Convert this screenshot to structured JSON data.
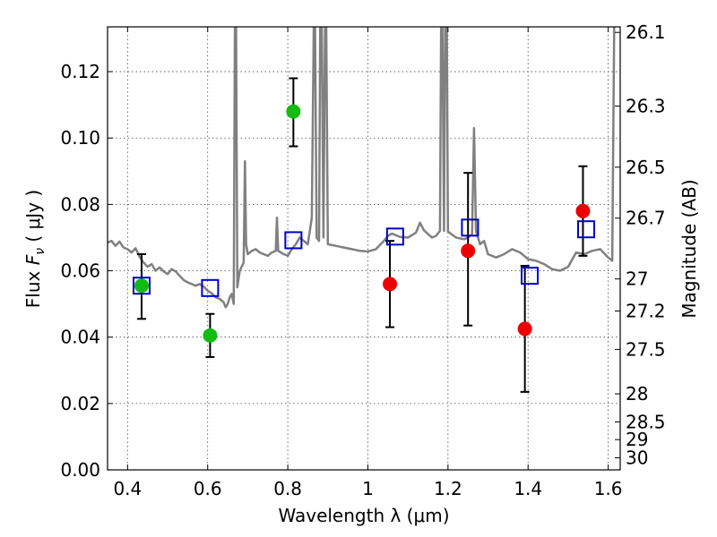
{
  "chart_data": {
    "type": "scatter",
    "title": "",
    "xlabel": "Wavelength  λ (μm)",
    "ylabel_prefix": "Flux  ",
    "ylabel_symbol": "F",
    "ylabel_subscript": "ν",
    "ylabel_suffix": "  ( μJy )",
    "y2label": "Magnitude (AB)",
    "xlim": [
      0.35,
      1.63
    ],
    "ylim": [
      0.0,
      0.1335
    ],
    "x_ticks": [
      0.4,
      0.6,
      0.8,
      1.0,
      1.2,
      1.4,
      1.6
    ],
    "x_tick_labels": [
      "0.4",
      "0.6",
      "0.8",
      "1",
      "1.2",
      "1.4",
      "1.6"
    ],
    "y_ticks": [
      0.0,
      0.02,
      0.04,
      0.06,
      0.08,
      0.1,
      0.12
    ],
    "y_tick_labels": [
      "0.00",
      "0.02",
      "0.04",
      "0.06",
      "0.08",
      "0.10",
      "0.12"
    ],
    "y2_ticks": [
      {
        "label": "26.1",
        "mag": 26.1
      },
      {
        "label": "26.3",
        "mag": 26.3
      },
      {
        "label": "26.5",
        "mag": 26.5
      },
      {
        "label": "26.7",
        "mag": 26.7
      },
      {
        "label": "27",
        "mag": 27.0
      },
      {
        "label": "27.2",
        "mag": 27.2
      },
      {
        "label": "27.5",
        "mag": 27.5
      },
      {
        "label": "28",
        "mag": 28.0
      },
      {
        "label": "28.5",
        "mag": 28.5
      },
      {
        "label": "29",
        "mag": 29.0
      },
      {
        "label": "30",
        "mag": 30.0
      }
    ],
    "grid": true,
    "colors": {
      "spectrum": "#808080",
      "green_points": "#11bb11",
      "red_points": "#ee0000",
      "model_squares": "#0000cc",
      "error_bars": "#000000"
    },
    "series": [
      {
        "marker": "circle",
        "color": "#11bb11",
        "points": [
          {
            "x": 0.435,
            "y": 0.0555,
            "err_lo": 0.0455,
            "err_hi": 0.065
          },
          {
            "x": 0.606,
            "y": 0.0405,
            "err_lo": 0.034,
            "err_hi": 0.047
          },
          {
            "x": 0.814,
            "y": 0.108,
            "err_lo": 0.0975,
            "err_hi": 0.118
          }
        ]
      },
      {
        "marker": "circle",
        "color": "#ee0000",
        "points": [
          {
            "x": 1.055,
            "y": 0.056,
            "err_lo": 0.043,
            "err_hi": 0.069
          },
          {
            "x": 1.25,
            "y": 0.066,
            "err_lo": 0.0435,
            "err_hi": 0.0895
          },
          {
            "x": 1.392,
            "y": 0.0425,
            "err_lo": 0.0235,
            "err_hi": 0.0615
          },
          {
            "x": 1.537,
            "y": 0.078,
            "err_lo": 0.0645,
            "err_hi": 0.0915
          }
        ]
      },
      {
        "marker": "open-square",
        "color": "#0000cc",
        "points": [
          {
            "x": 0.435,
            "y": 0.0555
          },
          {
            "x": 0.606,
            "y": 0.0548
          },
          {
            "x": 0.814,
            "y": 0.0692
          },
          {
            "x": 1.068,
            "y": 0.0703
          },
          {
            "x": 1.255,
            "y": 0.073
          },
          {
            "x": 1.404,
            "y": 0.0585
          },
          {
            "x": 1.545,
            "y": 0.0725
          }
        ]
      }
    ],
    "spectrum": {
      "color": "#808080",
      "points": [
        [
          0.35,
          0.0685
        ],
        [
          0.36,
          0.069
        ],
        [
          0.37,
          0.0675
        ],
        [
          0.38,
          0.0688
        ],
        [
          0.39,
          0.067
        ],
        [
          0.4,
          0.0665
        ],
        [
          0.41,
          0.0655
        ],
        [
          0.42,
          0.0668
        ],
        [
          0.43,
          0.0642
        ],
        [
          0.44,
          0.0625
        ],
        [
          0.45,
          0.0612
        ],
        [
          0.46,
          0.062
        ],
        [
          0.47,
          0.06
        ],
        [
          0.48,
          0.061
        ],
        [
          0.49,
          0.0598
        ],
        [
          0.5,
          0.059
        ],
        [
          0.51,
          0.0605
        ],
        [
          0.52,
          0.0598
        ],
        [
          0.53,
          0.0585
        ],
        [
          0.54,
          0.0572
        ],
        [
          0.55,
          0.0565
        ],
        [
          0.56,
          0.056
        ],
        [
          0.57,
          0.0555
        ],
        [
          0.58,
          0.056
        ],
        [
          0.59,
          0.0552
        ],
        [
          0.6,
          0.054
        ],
        [
          0.61,
          0.0532
        ],
        [
          0.62,
          0.052
        ],
        [
          0.63,
          0.0515
        ],
        [
          0.64,
          0.0505
        ],
        [
          0.645,
          0.049
        ],
        [
          0.65,
          0.05
        ],
        [
          0.655,
          0.052
        ],
        [
          0.66,
          0.053
        ],
        [
          0.665,
          0.05
        ],
        [
          0.668,
          0.134
        ],
        [
          0.671,
          0.134
        ],
        [
          0.674,
          0.055
        ],
        [
          0.68,
          0.06
        ],
        [
          0.69,
          0.0625
        ],
        [
          0.693,
          0.093
        ],
        [
          0.696,
          0.068
        ],
        [
          0.7,
          0.065
        ],
        [
          0.71,
          0.066
        ],
        [
          0.72,
          0.0665
        ],
        [
          0.73,
          0.0655
        ],
        [
          0.74,
          0.065
        ],
        [
          0.75,
          0.0645
        ],
        [
          0.76,
          0.0655
        ],
        [
          0.77,
          0.066
        ],
        [
          0.773,
          0.076
        ],
        [
          0.776,
          0.066
        ],
        [
          0.79,
          0.065
        ],
        [
          0.8,
          0.0645
        ],
        [
          0.81,
          0.0665
        ],
        [
          0.82,
          0.068
        ],
        [
          0.83,
          0.07
        ],
        [
          0.84,
          0.069
        ],
        [
          0.85,
          0.068
        ],
        [
          0.855,
          0.072
        ],
        [
          0.86,
          0.076
        ],
        [
          0.865,
          0.134
        ],
        [
          0.868,
          0.134
        ],
        [
          0.872,
          0.07
        ],
        [
          0.878,
          0.069
        ],
        [
          0.881,
          0.134
        ],
        [
          0.885,
          0.134
        ],
        [
          0.889,
          0.07
        ],
        [
          0.893,
          0.134
        ],
        [
          0.896,
          0.134
        ],
        [
          0.9,
          0.068
        ],
        [
          0.92,
          0.0675
        ],
        [
          0.94,
          0.067
        ],
        [
          0.96,
          0.0665
        ],
        [
          0.98,
          0.066
        ],
        [
          1.0,
          0.0658
        ],
        [
          1.02,
          0.0665
        ],
        [
          1.04,
          0.069
        ],
        [
          1.05,
          0.0705
        ],
        [
          1.06,
          0.0712
        ],
        [
          1.08,
          0.0702
        ],
        [
          1.1,
          0.07
        ],
        [
          1.12,
          0.0715
        ],
        [
          1.13,
          0.0745
        ],
        [
          1.14,
          0.0722
        ],
        [
          1.16,
          0.07
        ],
        [
          1.17,
          0.0705
        ],
        [
          1.18,
          0.072
        ],
        [
          1.183,
          0.134
        ],
        [
          1.186,
          0.134
        ],
        [
          1.19,
          0.072
        ],
        [
          1.193,
          0.134
        ],
        [
          1.197,
          0.134
        ],
        [
          1.2,
          0.0718
        ],
        [
          1.22,
          0.07
        ],
        [
          1.24,
          0.0695
        ],
        [
          1.25,
          0.07
        ],
        [
          1.26,
          0.071
        ],
        [
          1.265,
          0.103
        ],
        [
          1.27,
          0.072
        ],
        [
          1.28,
          0.068
        ],
        [
          1.29,
          0.069
        ],
        [
          1.3,
          0.065
        ],
        [
          1.32,
          0.064
        ],
        [
          1.34,
          0.065
        ],
        [
          1.36,
          0.0665
        ],
        [
          1.38,
          0.0655
        ],
        [
          1.4,
          0.0635
        ],
        [
          1.42,
          0.063
        ],
        [
          1.44,
          0.062
        ],
        [
          1.46,
          0.0605
        ],
        [
          1.48,
          0.06
        ],
        [
          1.5,
          0.0612
        ],
        [
          1.52,
          0.0655
        ],
        [
          1.54,
          0.065
        ],
        [
          1.56,
          0.066
        ],
        [
          1.58,
          0.0665
        ],
        [
          1.6,
          0.064
        ],
        [
          1.61,
          0.063
        ],
        [
          1.615,
          0.134
        ],
        [
          1.63,
          0.134
        ]
      ]
    }
  }
}
